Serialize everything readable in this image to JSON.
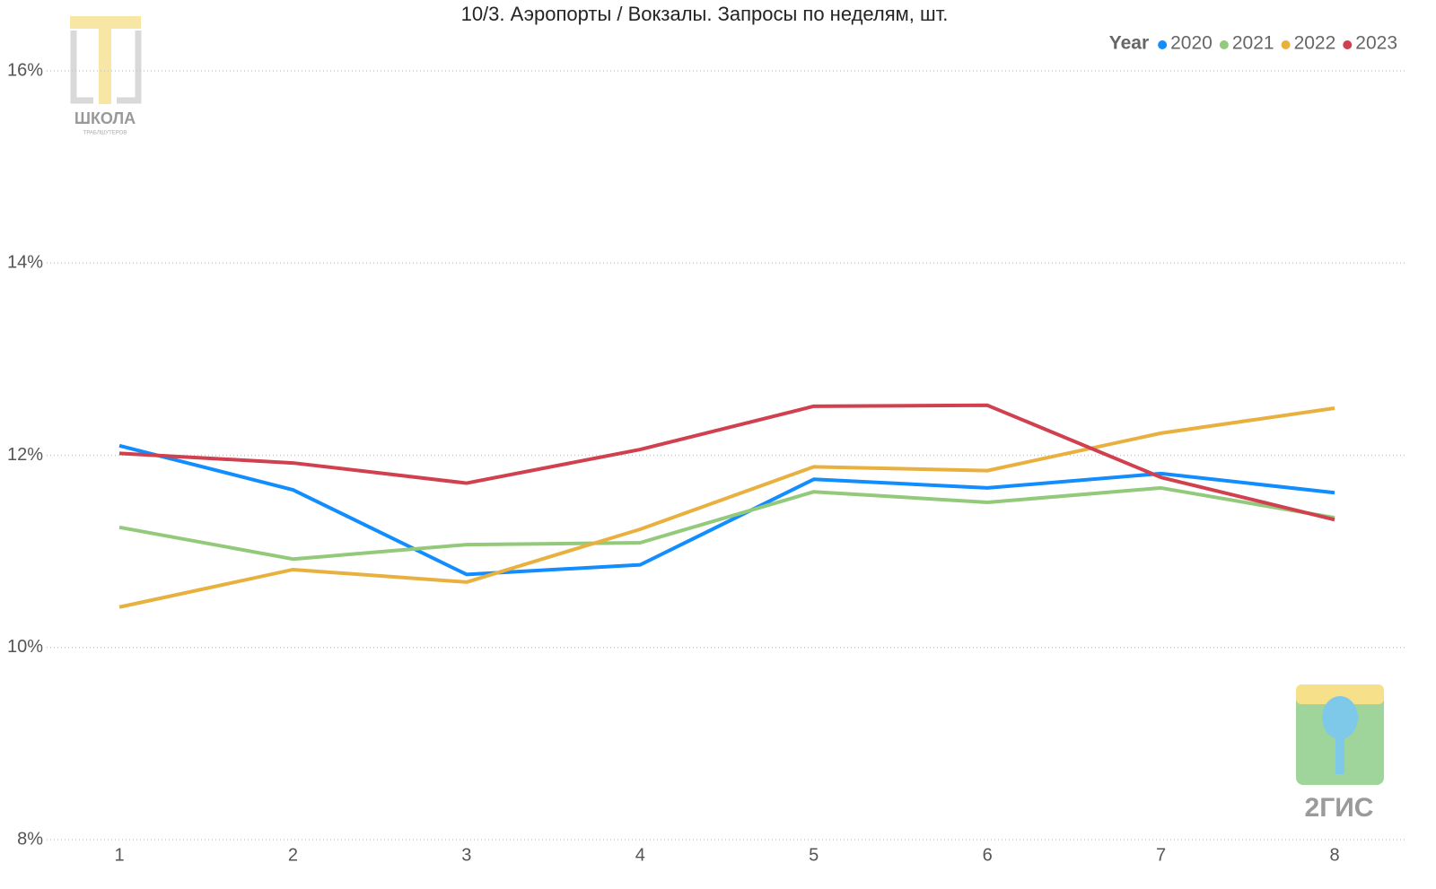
{
  "chart_data": {
    "type": "line",
    "title": "10/3. Аэропорты / Вокзалы. Запросы по неделям, шт.",
    "legend_title": "Year",
    "legend_position": "top-right",
    "grid": true,
    "x": [
      1,
      2,
      3,
      4,
      5,
      6,
      7,
      8
    ],
    "xlim": [
      1,
      8
    ],
    "xticks": [
      1,
      2,
      3,
      4,
      5,
      6,
      7,
      8
    ],
    "ylim": [
      8,
      16
    ],
    "yticks": [
      {
        "value": 8,
        "label": "8%"
      },
      {
        "value": 10,
        "label": "10%"
      },
      {
        "value": 12,
        "label": "12%"
      },
      {
        "value": 14,
        "label": "14%"
      },
      {
        "value": 16,
        "label": "16%"
      }
    ],
    "series": [
      {
        "name": "2020",
        "color": "#118dff",
        "values": [
          12.1,
          11.64,
          10.76,
          10.86,
          11.75,
          11.66,
          11.81,
          11.61
        ]
      },
      {
        "name": "2021",
        "color": "#93c97a",
        "values": [
          11.25,
          10.92,
          11.07,
          11.09,
          11.62,
          11.51,
          11.66,
          11.35
        ]
      },
      {
        "name": "2022",
        "color": "#e8b13f",
        "values": [
          10.42,
          10.81,
          10.68,
          11.23,
          11.88,
          11.84,
          12.23,
          12.49
        ]
      },
      {
        "name": "2023",
        "color": "#d0404f",
        "values": [
          12.02,
          11.92,
          11.71,
          12.06,
          12.51,
          12.52,
          11.77,
          11.33
        ]
      }
    ]
  },
  "watermarks": {
    "school": "ШКОЛА",
    "school_sub": "ТРАБЛШУТЕРОВ",
    "gis": "2ГИС"
  }
}
